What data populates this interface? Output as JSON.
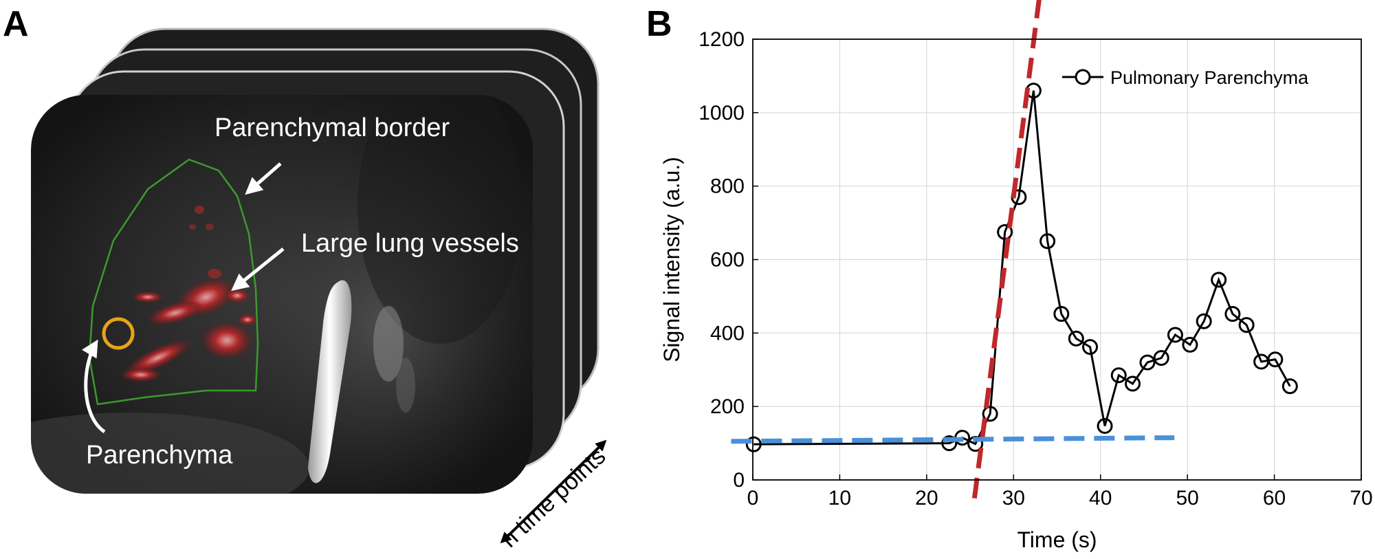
{
  "panel_a": {
    "letter": "A",
    "labels": {
      "border": "Parenchymal border",
      "vessels": "Large lung vessels",
      "parenchyma": "Parenchyma",
      "time_points": "n time points"
    },
    "colors": {
      "roi_circle": "#E8A317",
      "border_outline": "#3C9A2E",
      "vessels": "#C0282B"
    }
  },
  "panel_b": {
    "letter": "B"
  },
  "chart_data": {
    "type": "line",
    "title": "",
    "xlabel": "Time (s)",
    "ylabel": "Signal intensity (a.u.)",
    "xlim": [
      0,
      70
    ],
    "ylim": [
      0,
      1200
    ],
    "xticks": [
      0,
      10,
      20,
      30,
      40,
      50,
      60,
      70
    ],
    "yticks": [
      0,
      200,
      400,
      600,
      800,
      1000,
      1200
    ],
    "grid": true,
    "legend_position": "top-right",
    "series": [
      {
        "name": "Pulmonary Parenchyma",
        "color": "#000000",
        "marker": "circle",
        "x": [
          0.1,
          22.6,
          24.1,
          25.6,
          27.3,
          29.0,
          30.6,
          32.3,
          33.9,
          35.5,
          37.2,
          38.8,
          40.5,
          42.1,
          43.7,
          45.4,
          47.0,
          48.6,
          50.3,
          51.9,
          53.6,
          55.2,
          56.8,
          58.5,
          60.1,
          61.8
        ],
        "y": [
          97,
          100,
          115,
          98,
          180,
          675,
          770,
          1060,
          650,
          452,
          385,
          362,
          147,
          285,
          262,
          320,
          332,
          395,
          368,
          432,
          545,
          452,
          422,
          322,
          328,
          255
        ]
      }
    ],
    "reference_lines": [
      {
        "style": "dashed",
        "color": "#C0282B",
        "x": [
          25.5,
          33.0
        ],
        "y": [
          -50,
          1320
        ]
      },
      {
        "style": "dashed",
        "color": "#4A90D9",
        "x": [
          -2.5,
          48.5
        ],
        "y": [
          105,
          115
        ]
      }
    ]
  }
}
